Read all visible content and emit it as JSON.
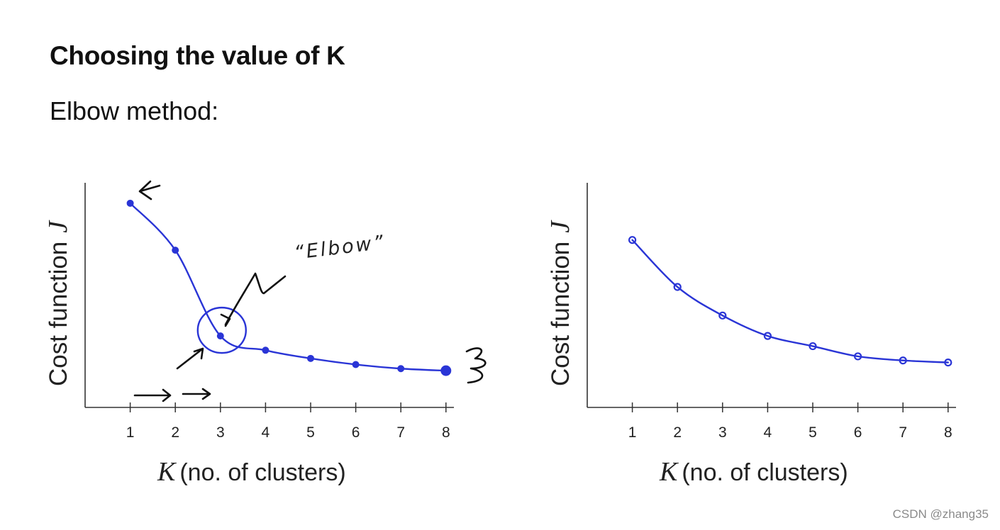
{
  "slide": {
    "title": "Choosing the value of K",
    "subtitle": "Elbow method:",
    "watermark": "CSDN @zhang35"
  },
  "colors": {
    "series": "#2a35d6",
    "axis": "#333333",
    "annotation": "#111111"
  },
  "chart_data": [
    {
      "type": "line",
      "title": "",
      "xlabel_var": "K",
      "xlabel": "(no. of clusters)",
      "ylabel": "Cost function",
      "ylabel_var": "J",
      "categories": [
        1,
        2,
        3,
        4,
        5,
        6,
        7,
        8
      ],
      "x": [
        1,
        2,
        3,
        4,
        5,
        6,
        7,
        8
      ],
      "values": [
        100,
        77,
        35,
        28,
        24,
        21,
        19,
        18
      ],
      "xlim": [
        0,
        8.4
      ],
      "ylim": [
        0,
        110
      ],
      "grid": false,
      "legend": "none",
      "annotations": [
        "“Elbow”"
      ]
    },
    {
      "type": "line",
      "title": "",
      "xlabel_var": "K",
      "xlabel": "(no. of clusters)",
      "ylabel": "Cost function",
      "ylabel_var": "J",
      "categories": [
        1,
        2,
        3,
        4,
        5,
        6,
        7,
        8
      ],
      "x": [
        1,
        2,
        3,
        4,
        5,
        6,
        7,
        8
      ],
      "values": [
        82,
        59,
        45,
        35,
        30,
        25,
        23,
        22
      ],
      "xlim": [
        0,
        8.4
      ],
      "ylim": [
        0,
        110
      ],
      "grid": false,
      "legend": "none",
      "annotations": []
    }
  ]
}
